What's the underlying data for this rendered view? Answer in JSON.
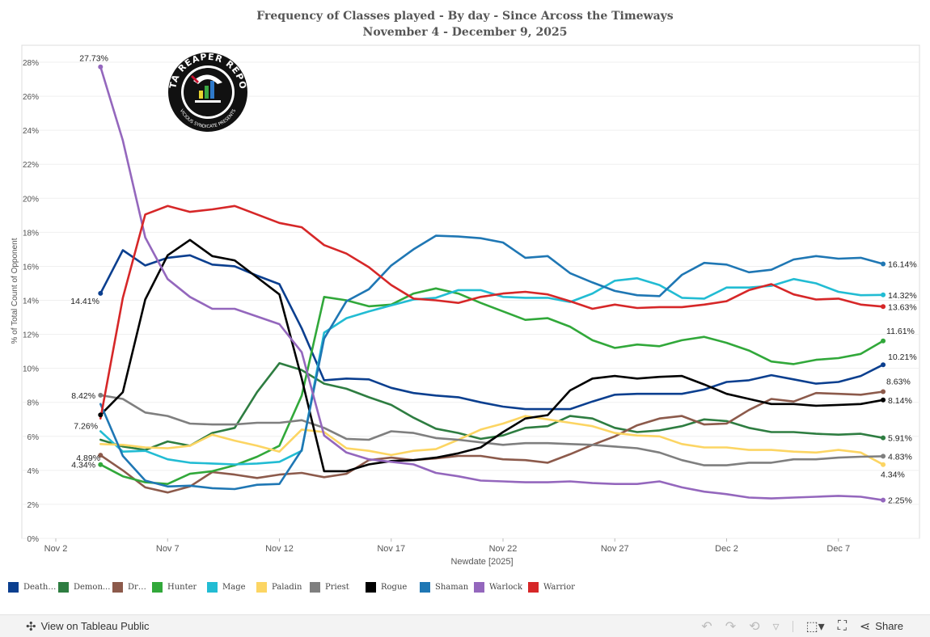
{
  "chart_data": {
    "type": "line",
    "title": "Frequency of Classes played - By day - Since Arcoss the Timeways",
    "subtitle": "November 4 - December 9, 2025",
    "xlabel": "Newdate [2025]",
    "ylabel": "% of Total Count of Opponent",
    "x_ticks": [
      "Nov 2",
      "Nov 7",
      "Nov 12",
      "Nov 17",
      "Nov 22",
      "Nov 27",
      "Dec 2",
      "Dec 7"
    ],
    "y_ticks": [
      "0%",
      "2%",
      "4%",
      "6%",
      "8%",
      "10%",
      "12%",
      "14%",
      "16%",
      "18%",
      "20%",
      "22%",
      "24%",
      "26%",
      "28%"
    ],
    "ylim": [
      0,
      29
    ],
    "grid": true,
    "legend_position": "bottom",
    "x": [
      "Nov 4",
      "Nov 5",
      "Nov 6",
      "Nov 7",
      "Nov 8",
      "Nov 9",
      "Nov 10",
      "Nov 11",
      "Nov 12",
      "Nov 13",
      "Nov 14",
      "Nov 15",
      "Nov 16",
      "Nov 17",
      "Nov 18",
      "Nov 19",
      "Nov 20",
      "Nov 21",
      "Nov 22",
      "Nov 23",
      "Nov 24",
      "Nov 25",
      "Nov 26",
      "Nov 27",
      "Nov 28",
      "Nov 29",
      "Nov 30",
      "Dec 1",
      "Dec 2",
      "Dec 3",
      "Dec 4",
      "Dec 5",
      "Dec 6",
      "Dec 7",
      "Dec 8",
      "Dec 9"
    ],
    "series": [
      {
        "name": "DeathKnight",
        "legend": "DeathK...",
        "color": "#0b3f8f",
        "start_label": "14.41%",
        "end_label": "10.21%",
        "values": [
          14.41,
          16.95,
          16.05,
          16.5,
          16.65,
          16.1,
          16.0,
          15.45,
          14.95,
          12.35,
          9.3,
          9.4,
          9.35,
          8.85,
          8.55,
          8.4,
          8.3,
          8.0,
          7.75,
          7.6,
          7.6,
          7.6,
          8.05,
          8.45,
          8.5,
          8.5,
          8.5,
          8.75,
          9.2,
          9.3,
          9.6,
          9.35,
          9.1,
          9.2,
          9.55,
          10.21
        ]
      },
      {
        "name": "Demon Hunter",
        "legend": "Demon...",
        "color": "#2e7d41",
        "start_label": "",
        "end_label": "5.91%",
        "values": [
          5.8,
          5.4,
          5.2,
          5.7,
          5.45,
          6.2,
          6.5,
          8.6,
          10.3,
          9.9,
          9.1,
          8.8,
          8.3,
          7.85,
          7.1,
          6.45,
          6.2,
          5.85,
          6.05,
          6.5,
          6.6,
          7.2,
          7.05,
          6.5,
          6.25,
          6.35,
          6.6,
          7.0,
          6.9,
          6.5,
          6.25,
          6.25,
          6.15,
          6.1,
          6.15,
          5.91
        ]
      },
      {
        "name": "Druid",
        "legend": "Druid",
        "color": "#8c5a4b",
        "start_label": "4.89%",
        "end_label": "8.63%",
        "values": [
          4.89,
          4.0,
          3.0,
          2.7,
          3.05,
          3.9,
          3.75,
          3.55,
          3.75,
          3.85,
          3.6,
          3.8,
          4.6,
          4.75,
          4.6,
          4.7,
          4.85,
          4.85,
          4.65,
          4.6,
          4.45,
          4.95,
          5.5,
          6.0,
          6.65,
          7.05,
          7.2,
          6.7,
          6.75,
          7.55,
          8.2,
          8.05,
          8.55,
          8.5,
          8.45,
          8.63
        ]
      },
      {
        "name": "Hunter",
        "legend": "Hunter",
        "color": "#31a83a",
        "start_label": "4.34%",
        "end_label": "11.61%",
        "values": [
          4.34,
          3.65,
          3.3,
          3.2,
          3.8,
          3.95,
          4.3,
          4.8,
          5.45,
          8.4,
          14.2,
          14.0,
          13.65,
          13.75,
          14.4,
          14.7,
          14.4,
          13.85,
          13.35,
          12.85,
          12.95,
          12.45,
          11.65,
          11.2,
          11.4,
          11.3,
          11.65,
          11.85,
          11.5,
          11.05,
          10.4,
          10.25,
          10.5,
          10.6,
          10.85,
          11.61
        ]
      },
      {
        "name": "Mage",
        "legend": "Mage",
        "color": "#22bcd3",
        "start_label": "",
        "end_label": "14.32%",
        "values": [
          6.3,
          5.1,
          5.15,
          4.65,
          4.45,
          4.4,
          4.35,
          4.4,
          4.5,
          5.15,
          12.1,
          12.95,
          13.35,
          13.7,
          14.05,
          14.15,
          14.6,
          14.6,
          14.2,
          14.15,
          14.15,
          13.9,
          14.4,
          15.15,
          15.3,
          14.9,
          14.15,
          14.1,
          14.75,
          14.75,
          14.85,
          15.25,
          15.0,
          14.5,
          14.3,
          14.32
        ]
      },
      {
        "name": "Paladin",
        "legend": "Paladin",
        "color": "#fcd563",
        "start_label": "",
        "end_label": "4.34%",
        "values": [
          5.55,
          5.5,
          5.35,
          5.3,
          5.45,
          6.1,
          5.75,
          5.45,
          5.1,
          6.4,
          6.25,
          5.3,
          5.15,
          4.9,
          5.15,
          5.25,
          5.8,
          6.4,
          6.75,
          7.2,
          7.0,
          6.8,
          6.6,
          6.2,
          6.05,
          6.0,
          5.55,
          5.35,
          5.35,
          5.2,
          5.2,
          5.1,
          5.05,
          5.2,
          5.05,
          4.34
        ]
      },
      {
        "name": "Priest",
        "legend": "Priest",
        "color": "#7f7f7f",
        "start_label": "8.42%",
        "end_label": "4.83%",
        "values": [
          8.42,
          8.2,
          7.4,
          7.2,
          6.75,
          6.7,
          6.7,
          6.8,
          6.8,
          6.95,
          6.5,
          5.85,
          5.8,
          6.3,
          6.2,
          5.9,
          5.8,
          5.65,
          5.5,
          5.6,
          5.6,
          5.55,
          5.5,
          5.4,
          5.3,
          5.05,
          4.6,
          4.3,
          4.3,
          4.45,
          4.45,
          4.65,
          4.65,
          4.75,
          4.8,
          4.83
        ]
      },
      {
        "name": "Rogue",
        "legend": "Rogue",
        "color": "#000000",
        "start_label": "7.26%",
        "end_label": "8.14%",
        "values": [
          7.26,
          8.6,
          14.05,
          16.65,
          17.55,
          16.6,
          16.35,
          15.35,
          14.35,
          9.4,
          3.95,
          3.95,
          4.35,
          4.55,
          4.6,
          4.75,
          5.0,
          5.35,
          6.25,
          7.05,
          7.25,
          8.7,
          9.4,
          9.55,
          9.4,
          9.5,
          9.55,
          9.05,
          8.5,
          8.2,
          7.9,
          7.9,
          7.8,
          7.85,
          7.9,
          8.14
        ]
      },
      {
        "name": "Shaman",
        "legend": "Shaman",
        "color": "#1f77b4",
        "start_label": "",
        "end_label": "16.14%",
        "values": [
          7.9,
          4.85,
          3.4,
          3.05,
          3.1,
          2.95,
          2.9,
          3.15,
          3.2,
          5.2,
          11.75,
          13.95,
          14.65,
          16.05,
          17.0,
          17.8,
          17.75,
          17.65,
          17.4,
          16.5,
          16.6,
          15.6,
          15.05,
          14.55,
          14.3,
          14.25,
          15.5,
          16.2,
          16.1,
          15.65,
          15.8,
          16.4,
          16.6,
          16.45,
          16.5,
          16.14
        ]
      },
      {
        "name": "Warlock",
        "legend": "Warlock",
        "color": "#9467bd",
        "start_label": "27.73%",
        "end_label": "2.25%",
        "values": [
          27.73,
          23.4,
          17.7,
          15.25,
          14.2,
          13.5,
          13.5,
          13.05,
          12.6,
          10.95,
          6.05,
          5.05,
          4.65,
          4.5,
          4.35,
          3.85,
          3.65,
          3.4,
          3.35,
          3.3,
          3.3,
          3.35,
          3.25,
          3.2,
          3.2,
          3.35,
          3.0,
          2.75,
          2.6,
          2.4,
          2.35,
          2.4,
          2.45,
          2.5,
          2.45,
          2.25
        ]
      },
      {
        "name": "Warrior",
        "legend": "Warrior",
        "color": "#d62728",
        "start_label": "",
        "end_label": "13.63%",
        "values": [
          7.05,
          14.15,
          19.05,
          19.55,
          19.2,
          19.35,
          19.55,
          19.05,
          18.55,
          18.3,
          17.25,
          16.75,
          15.95,
          14.9,
          14.1,
          14.0,
          13.85,
          14.2,
          14.4,
          14.5,
          14.35,
          13.95,
          13.5,
          13.75,
          13.55,
          13.6,
          13.6,
          13.75,
          13.95,
          14.6,
          14.95,
          14.35,
          14.05,
          14.1,
          13.75,
          13.63
        ]
      }
    ]
  },
  "logo": {
    "text": "DATA REAPER REPORT",
    "subtext": "VICIOUS SYNDICATE PRESENTS"
  },
  "footer": {
    "view_on": "View on Tableau Public",
    "share": "Share"
  },
  "icons": {
    "tableau": "tableau-logo-icon",
    "undo": "undo-icon",
    "redo": "redo-icon",
    "revert": "revert-icon",
    "pause": "pause-icon",
    "download": "download-icon",
    "fullscreen": "fullscreen-icon",
    "share": "share-icon"
  }
}
